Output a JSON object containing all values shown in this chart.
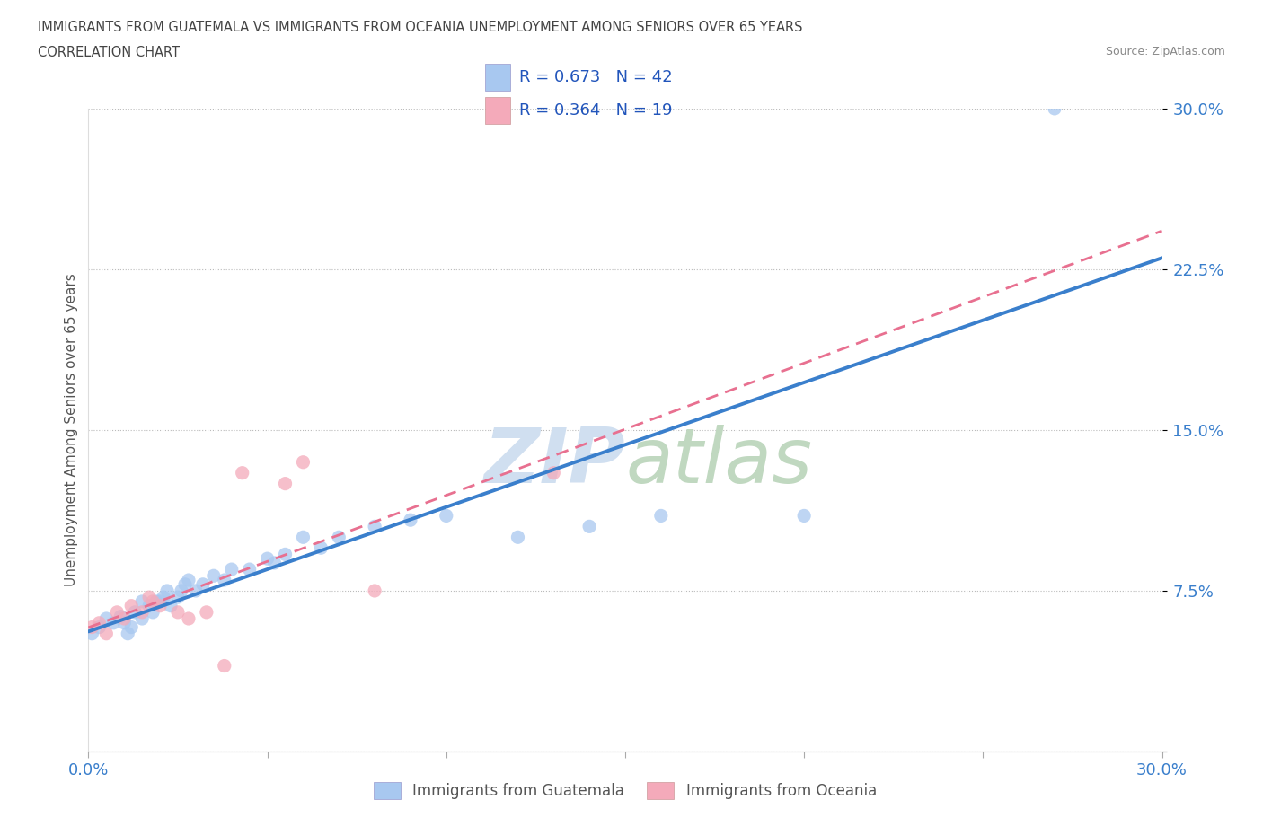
{
  "title_line1": "IMMIGRANTS FROM GUATEMALA VS IMMIGRANTS FROM OCEANIA UNEMPLOYMENT AMONG SENIORS OVER 65 YEARS",
  "title_line2": "CORRELATION CHART",
  "source_text": "Source: ZipAtlas.com",
  "ylabel": "Unemployment Among Seniors over 65 years",
  "xmin": 0.0,
  "xmax": 0.3,
  "ymin": 0.0,
  "ymax": 0.3,
  "r_guatemala": 0.673,
  "n_guatemala": 42,
  "r_oceania": 0.364,
  "n_oceania": 19,
  "color_guatemala": "#A8C8F0",
  "color_oceania": "#F4AABA",
  "line_color_guatemala": "#3A7FCC",
  "line_color_oceania": "#E87090",
  "scatter_alpha": 0.75,
  "scatter_size": 120,
  "watermark_color": "#D0DFF0",
  "guatemala_x": [
    0.001,
    0.003,
    0.005,
    0.007,
    0.009,
    0.01,
    0.011,
    0.012,
    0.013,
    0.015,
    0.015,
    0.017,
    0.018,
    0.019,
    0.02,
    0.021,
    0.022,
    0.023,
    0.025,
    0.026,
    0.027,
    0.028,
    0.03,
    0.032,
    0.035,
    0.038,
    0.04,
    0.045,
    0.05,
    0.052,
    0.055,
    0.06,
    0.065,
    0.07,
    0.08,
    0.09,
    0.1,
    0.12,
    0.14,
    0.16,
    0.2,
    0.27
  ],
  "guatemala_y": [
    0.055,
    0.058,
    0.062,
    0.06,
    0.063,
    0.06,
    0.055,
    0.058,
    0.065,
    0.062,
    0.07,
    0.068,
    0.065,
    0.07,
    0.07,
    0.072,
    0.075,
    0.068,
    0.072,
    0.075,
    0.078,
    0.08,
    0.075,
    0.078,
    0.082,
    0.08,
    0.085,
    0.085,
    0.09,
    0.088,
    0.092,
    0.1,
    0.095,
    0.1,
    0.105,
    0.108,
    0.11,
    0.1,
    0.105,
    0.11,
    0.11,
    0.3
  ],
  "oceania_x": [
    0.001,
    0.003,
    0.005,
    0.008,
    0.01,
    0.012,
    0.015,
    0.017,
    0.018,
    0.02,
    0.025,
    0.028,
    0.033,
    0.038,
    0.043,
    0.055,
    0.06,
    0.08,
    0.13
  ],
  "oceania_y": [
    0.058,
    0.06,
    0.055,
    0.065,
    0.062,
    0.068,
    0.065,
    0.072,
    0.07,
    0.068,
    0.065,
    0.062,
    0.065,
    0.04,
    0.13,
    0.125,
    0.135,
    0.075,
    0.13
  ]
}
